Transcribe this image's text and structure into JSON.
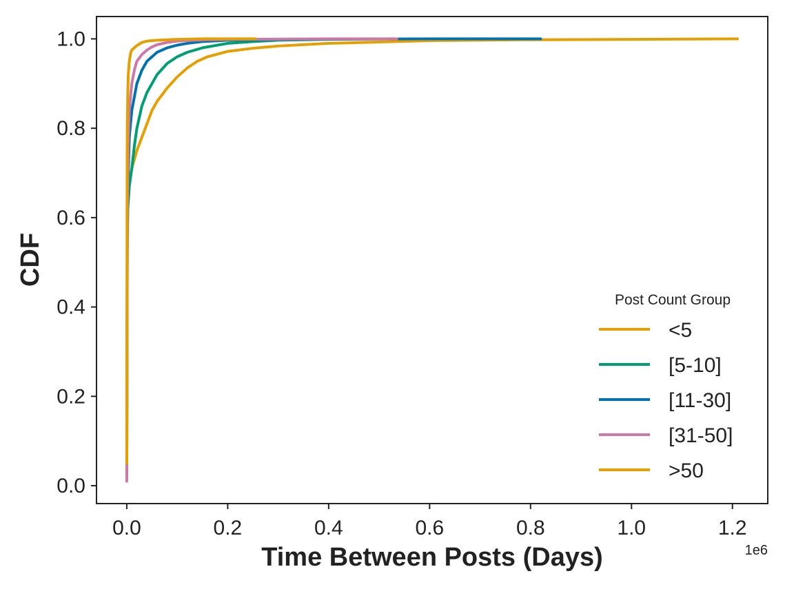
{
  "chart_data": {
    "type": "line",
    "title": "",
    "xlabel": "Time Between Posts (Days)",
    "ylabel": "CDF",
    "x_offset_label": "1e6",
    "xlim": [
      -60000,
      1270000
    ],
    "ylim": [
      -0.04,
      1.05
    ],
    "xticks": [
      0,
      200000,
      400000,
      600000,
      800000,
      1000000,
      1200000
    ],
    "xtick_labels": [
      "0.0",
      "0.2",
      "0.4",
      "0.6",
      "0.8",
      "1.0",
      "1.2"
    ],
    "yticks": [
      0,
      0.2,
      0.4,
      0.6,
      0.8,
      1.0
    ],
    "ytick_labels": [
      "0.0",
      "0.2",
      "0.4",
      "0.6",
      "0.8",
      "1.0"
    ],
    "grid": false,
    "legend": {
      "title": "Post Count Group",
      "placement": "lower-right"
    },
    "series": [
      {
        "name": "<5",
        "color": "#E69F00",
        "x": [
          0,
          1000,
          2000,
          5000,
          10000,
          15000,
          20000,
          30000,
          40000,
          50000,
          60000,
          80000,
          100000,
          120000,
          140000,
          160000,
          200000,
          250000,
          300000,
          400000,
          600000,
          800000,
          1000000,
          1210000
        ],
        "y": [
          0.03,
          0.52,
          0.62,
          0.68,
          0.71,
          0.73,
          0.75,
          0.78,
          0.81,
          0.84,
          0.86,
          0.89,
          0.915,
          0.935,
          0.95,
          0.96,
          0.972,
          0.979,
          0.984,
          0.99,
          0.996,
          0.998,
          0.999,
          1.0
        ]
      },
      {
        "name": "[5-10]",
        "color": "#009E73",
        "x": [
          0,
          1000,
          2000,
          5000,
          10000,
          15000,
          20000,
          30000,
          40000,
          50000,
          60000,
          80000,
          100000,
          120000,
          150000,
          200000,
          250000,
          300000,
          400000,
          530000
        ],
        "y": [
          0.02,
          0.55,
          0.62,
          0.67,
          0.71,
          0.76,
          0.8,
          0.85,
          0.88,
          0.9,
          0.92,
          0.945,
          0.96,
          0.97,
          0.98,
          0.99,
          0.994,
          0.997,
          0.999,
          1.0
        ]
      },
      {
        "name": "[11-30]",
        "color": "#0072B2",
        "x": [
          0,
          1000,
          3000,
          5000,
          10000,
          15000,
          20000,
          30000,
          40000,
          50000,
          60000,
          80000,
          100000,
          120000,
          150000,
          200000,
          300000,
          400000,
          600000,
          820000
        ],
        "y": [
          0.02,
          0.58,
          0.7,
          0.78,
          0.84,
          0.87,
          0.9,
          0.93,
          0.95,
          0.96,
          0.97,
          0.98,
          0.986,
          0.99,
          0.994,
          0.997,
          0.999,
          0.9995,
          1.0,
          1.0
        ]
      },
      {
        "name": "[31-50]",
        "color": "#CC79A7",
        "x": [
          0,
          1000,
          3000,
          5000,
          10000,
          15000,
          20000,
          30000,
          40000,
          50000,
          60000,
          80000,
          100000,
          150000,
          200000,
          300000,
          400000,
          535000
        ],
        "y": [
          0.01,
          0.6,
          0.78,
          0.84,
          0.9,
          0.93,
          0.95,
          0.965,
          0.975,
          0.982,
          0.987,
          0.992,
          0.995,
          0.998,
          0.999,
          0.9995,
          1.0,
          1.0
        ]
      },
      {
        "name": ">50",
        "color": "#E69F00",
        "x": [
          0,
          500,
          1000,
          2000,
          3000,
          5000,
          8000,
          10000,
          15000,
          20000,
          30000,
          40000,
          60000,
          80000,
          100000,
          150000,
          200000,
          255000
        ],
        "y": [
          0.05,
          0.6,
          0.8,
          0.88,
          0.92,
          0.95,
          0.97,
          0.975,
          0.98,
          0.985,
          0.992,
          0.995,
          0.997,
          0.998,
          0.999,
          1.0,
          1.0,
          1.0
        ]
      }
    ]
  }
}
